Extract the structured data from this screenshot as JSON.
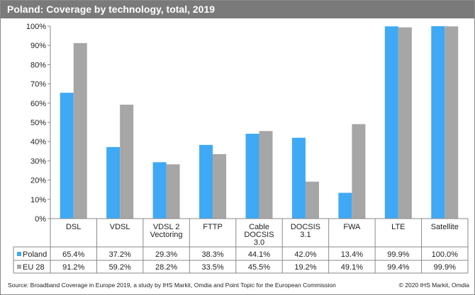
{
  "title": "Poland: Coverage by technology, total, 2019",
  "footer": {
    "source": "Source: Broadband Coverage in Europe 2019, a study by IHS Markit, Omdia and Point Topic for the European Commission",
    "copyright": "© 2020 IHS Markit, Omdia"
  },
  "colors": {
    "poland": "#3fa9f5",
    "eu28": "#a6a6a6",
    "title_bg": "#7a7a7a"
  },
  "chart_data": {
    "type": "bar",
    "categories": [
      [
        "DSL"
      ],
      [
        "VDSL"
      ],
      [
        "VDSL 2",
        "Vectoring"
      ],
      [
        "FTTP"
      ],
      [
        "Cable",
        "DOCSIS",
        "3.0"
      ],
      [
        "DOCSIS",
        "3.1"
      ],
      [
        "FWA"
      ],
      [
        "LTE"
      ],
      [
        "Satellite"
      ]
    ],
    "series": [
      {
        "name": "Poland",
        "values": [
          65.4,
          37.2,
          29.3,
          38.3,
          44.1,
          42.0,
          13.4,
          99.9,
          100.0
        ],
        "labels": [
          "65.4%",
          "37.2%",
          "29.3%",
          "38.3%",
          "44.1%",
          "42.0%",
          "13.4%",
          "99.9%",
          "100.0%"
        ]
      },
      {
        "name": "EU 28",
        "values": [
          91.2,
          59.2,
          28.2,
          33.5,
          45.5,
          19.2,
          49.1,
          99.4,
          99.9
        ],
        "labels": [
          "91.2%",
          "59.2%",
          "28.2%",
          "33.5%",
          "45.5%",
          "19.2%",
          "49.1%",
          "99.4%",
          "99.9%"
        ]
      }
    ],
    "yticks": [
      "0%",
      "10%",
      "20%",
      "30%",
      "40%",
      "50%",
      "60%",
      "70%",
      "80%",
      "90%",
      "100%"
    ],
    "ylim": [
      0,
      100
    ],
    "grid": false,
    "legend": "data-table"
  }
}
